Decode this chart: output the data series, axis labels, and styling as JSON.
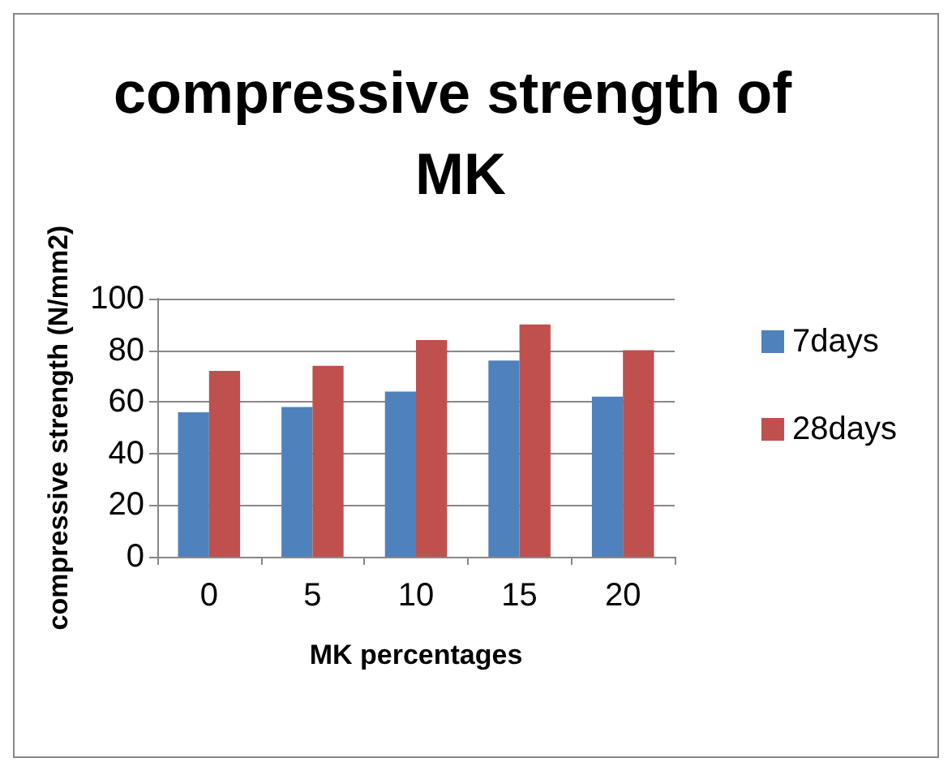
{
  "chart_data": {
    "type": "bar",
    "title": "compressive strength of MK",
    "xlabel": "MK percentages",
    "ylabel": "compressive strength (N/mm2)",
    "categories": [
      "0",
      "5",
      "10",
      "15",
      "20"
    ],
    "series": [
      {
        "name": "7days",
        "color": "#4f81bd",
        "values": [
          56,
          58,
          64,
          76,
          62
        ]
      },
      {
        "name": "28days",
        "color": "#c0504d",
        "values": [
          72,
          74,
          84,
          90,
          80
        ]
      }
    ],
    "ylim": [
      0,
      100
    ],
    "yticks": [
      0,
      20,
      40,
      60,
      80,
      100
    ],
    "grid": "y",
    "legend": "right"
  }
}
